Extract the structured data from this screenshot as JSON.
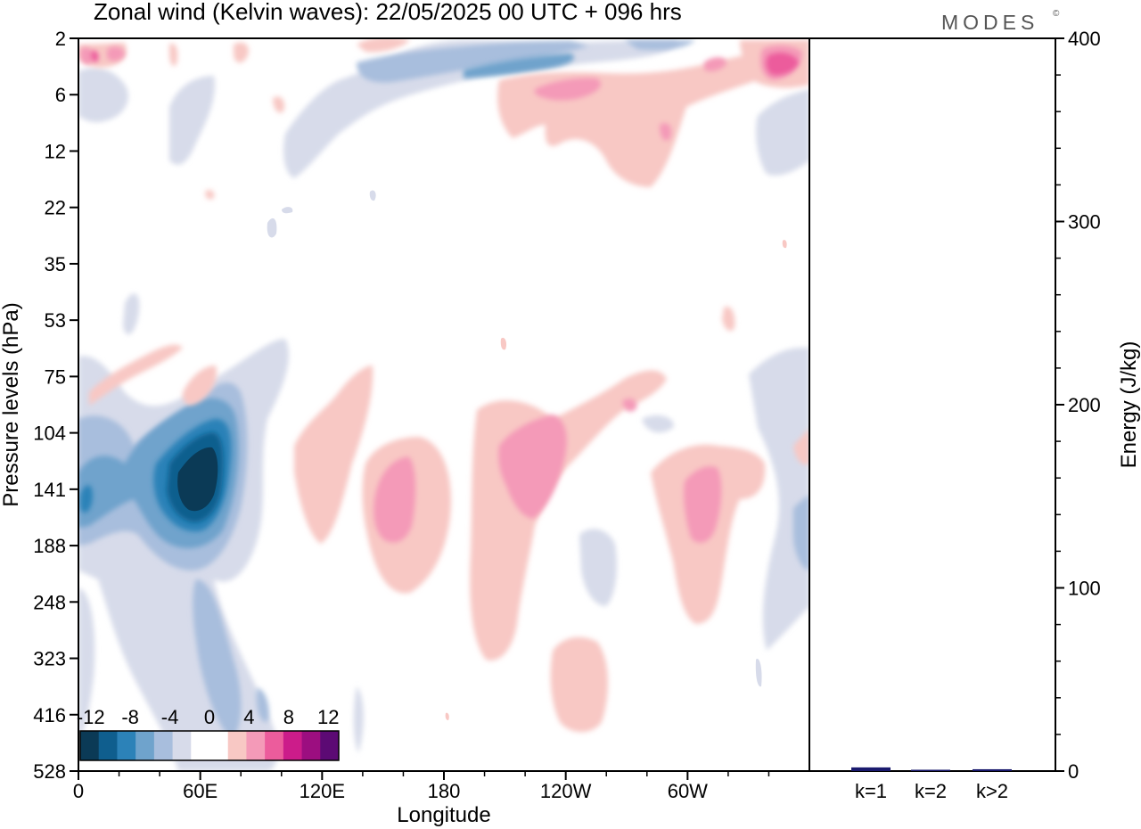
{
  "chart_data": {
    "type": "heatmap",
    "title": "Zonal wind (Kelvin waves):  22/05/2025  00 UTC  + 096 hrs",
    "brand": "MODES",
    "brand_mark": "©",
    "xlabel": "Longitude",
    "ylabel": "Pressure levels (hPa)",
    "x_ticks": [
      "0",
      "60E",
      "120E",
      "180",
      "120W",
      "60W"
    ],
    "y_ticks": [
      "2",
      "6",
      "12",
      "22",
      "35",
      "53",
      "75",
      "104",
      "141",
      "188",
      "248",
      "323",
      "416",
      "528"
    ],
    "colorbar": {
      "labels": [
        "-12",
        "-8",
        "-4",
        "0",
        "4",
        "8",
        "12"
      ],
      "colors": [
        "#0b3a56",
        "#0f5e8e",
        "#2c82b8",
        "#6fa3cc",
        "#a8bedd",
        "#d7dbea",
        "#ffffff",
        "#ffffff",
        "#f8c8c4",
        "#f49ab8",
        "#ec5c9c",
        "#cc1c8a",
        "#9c0e80",
        "#5c0a74"
      ]
    },
    "anomalies": [
      {
        "lon": 60,
        "lev": 141,
        "val": -14
      },
      {
        "lon": 10,
        "lev": 150,
        "val": -6
      },
      {
        "lon": 78,
        "lev": 290,
        "val": -6
      },
      {
        "lon": 150,
        "lev": 150,
        "val": 6
      },
      {
        "lon": 210,
        "lev": 150,
        "val": 6
      },
      {
        "lon": 290,
        "lev": 150,
        "val": 6
      },
      {
        "lon": 235,
        "lev": 380,
        "val": 4
      },
      {
        "lon": 320,
        "lev": 150,
        "val": -4
      },
      {
        "lon": 355,
        "lev": 3,
        "val": 9
      },
      {
        "lon": 200,
        "lev": 4,
        "val": -6
      }
    ],
    "energy_panel": {
      "ylabel": "Energy (J/kg)",
      "ylim": [
        0,
        400
      ],
      "y_ticks": [
        "0",
        "100",
        "200",
        "300",
        "400"
      ],
      "categories": [
        "k=1",
        "k=2",
        "k>2"
      ],
      "values": [
        2,
        0.5,
        1
      ],
      "bar_color": "#1a1a6e"
    }
  }
}
